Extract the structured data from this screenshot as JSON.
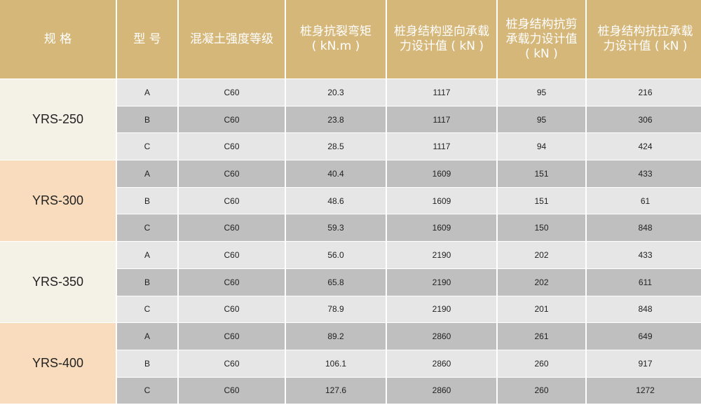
{
  "headers": [
    "规 格",
    "型 号",
    "混凝土强度等级",
    "桩身抗裂弯矩\n( kN.m )",
    "桩身结构竖向承载\n力设计值 ( kN )",
    "桩身结构抗剪\n承载力设计值\n( kN )",
    "桩身结构抗拉承载\n力设计值 ( kN )"
  ],
  "colors": {
    "header": "#d6b77a",
    "row_light": "#e6e6e6",
    "row_dark": "#bfbfbf",
    "spec_cream": "#f4f1e6",
    "spec_peach": "#f8dcbd"
  },
  "groups": [
    {
      "spec": "YRS-250",
      "rows": [
        {
          "type": "A",
          "grade": "C60",
          "moment": "20.3",
          "vertical": "1117",
          "shear": "95",
          "tension": "216"
        },
        {
          "type": "B",
          "grade": "C60",
          "moment": "23.8",
          "vertical": "1117",
          "shear": "95",
          "tension": "306"
        },
        {
          "type": "C",
          "grade": "C60",
          "moment": "28.5",
          "vertical": "1117",
          "shear": "94",
          "tension": "424"
        }
      ]
    },
    {
      "spec": "YRS-300",
      "rows": [
        {
          "type": "A",
          "grade": "C60",
          "moment": "40.4",
          "vertical": "1609",
          "shear": "151",
          "tension": "433"
        },
        {
          "type": "B",
          "grade": "C60",
          "moment": "48.6",
          "vertical": "1609",
          "shear": "151",
          "tension": "61"
        },
        {
          "type": "C",
          "grade": "C60",
          "moment": "59.3",
          "vertical": "1609",
          "shear": "150",
          "tension": "848"
        }
      ]
    },
    {
      "spec": "YRS-350",
      "rows": [
        {
          "type": "A",
          "grade": "C60",
          "moment": "56.0",
          "vertical": "2190",
          "shear": "202",
          "tension": "433"
        },
        {
          "type": "B",
          "grade": "C60",
          "moment": "65.8",
          "vertical": "2190",
          "shear": "202",
          "tension": "611"
        },
        {
          "type": "C",
          "grade": "C60",
          "moment": "78.9",
          "vertical": "2190",
          "shear": "201",
          "tension": "848"
        }
      ]
    },
    {
      "spec": "YRS-400",
      "rows": [
        {
          "type": "A",
          "grade": "C60",
          "moment": "89.2",
          "vertical": "2860",
          "shear": "261",
          "tension": "649"
        },
        {
          "type": "B",
          "grade": "C60",
          "moment": "106.1",
          "vertical": "2860",
          "shear": "260",
          "tension": "917"
        },
        {
          "type": "C",
          "grade": "C60",
          "moment": "127.6",
          "vertical": "2860",
          "shear": "260",
          "tension": "1272"
        }
      ]
    }
  ]
}
